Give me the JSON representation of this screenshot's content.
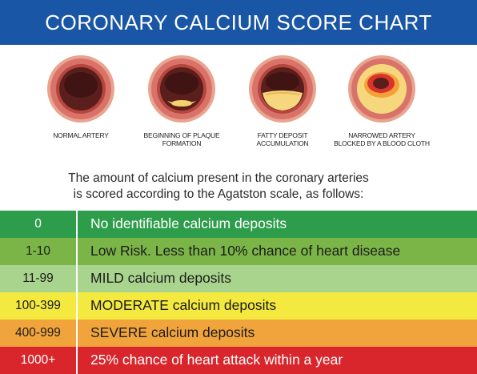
{
  "title": "CORONARY CALCIUM SCORE CHART",
  "arteries": [
    {
      "label": "NORMAL ARTERY",
      "stage": "normal"
    },
    {
      "label": "BEGINNING OF PLAQUE\nFORMATION",
      "stage": "plaque-beginning"
    },
    {
      "label": "FATTY DEPOSIT\nACCUMULATION",
      "stage": "fatty-deposit"
    },
    {
      "label": "NARROWED ARTERY\nBLOCKED BY A BLOOD CLOTH",
      "stage": "narrowed-clot"
    }
  ],
  "description": "The amount of calcium present in the coronary arteries\nis scored according to the Agatston scale, as follows:",
  "scale": [
    {
      "score": "0",
      "text": "No identifiable calcium deposits",
      "color": "#2e9d4b",
      "text_color": "#ffffff"
    },
    {
      "score": "1-10",
      "text": "Low Risk. Less than 10% chance of heart disease",
      "color": "#7bb547",
      "text_color": "#1c1c1c"
    },
    {
      "score": "11-99",
      "text": "MILD calcium deposits",
      "color": "#a9d48d",
      "text_color": "#1c1c1c"
    },
    {
      "score": "100-399",
      "text": "MODERATE calcium deposits",
      "color": "#f3e93f",
      "text_color": "#1c1c1c"
    },
    {
      "score": "400-999",
      "text": "SEVERE calcium deposits",
      "color": "#f2a43c",
      "text_color": "#1c1c1c"
    },
    {
      "score": "1000+",
      "text": "25% chance of heart attack within a year",
      "color": "#d9262c",
      "text_color": "#ffffff"
    }
  ]
}
